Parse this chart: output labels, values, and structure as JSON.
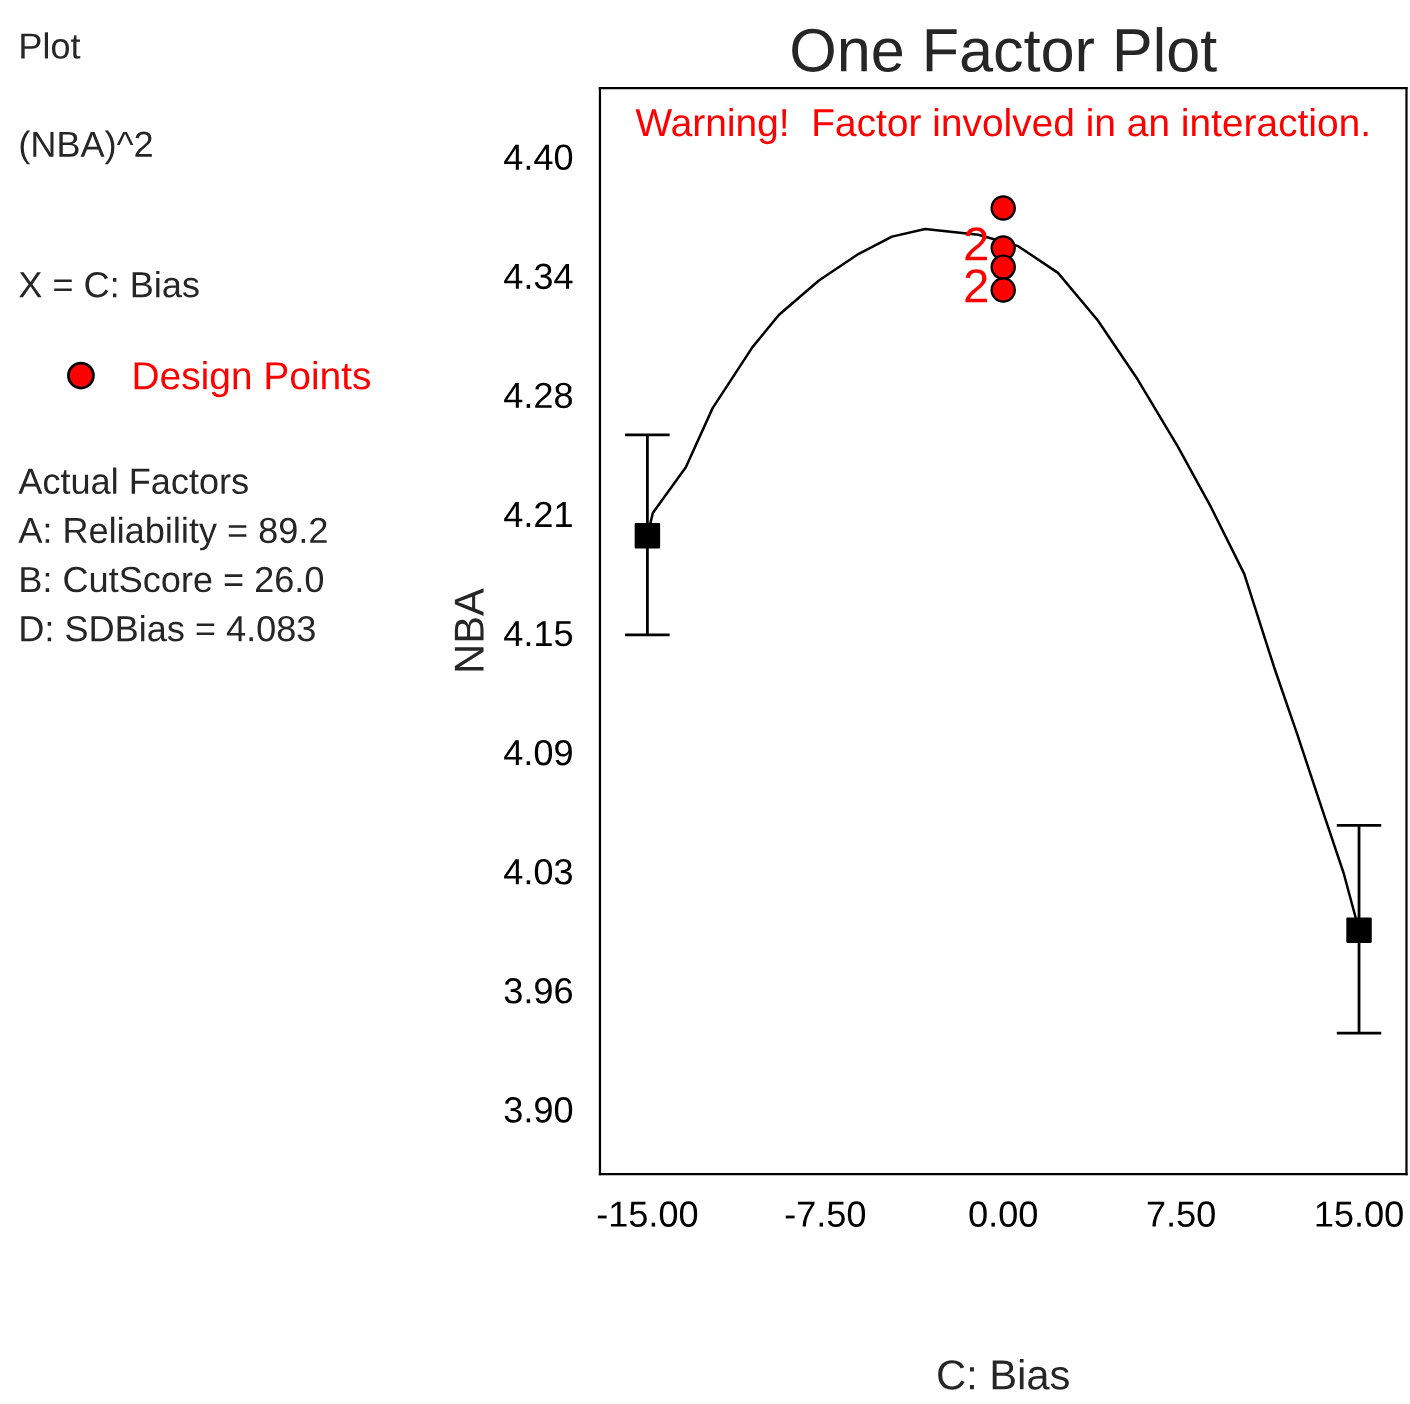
{
  "chart_data": {
    "type": "line",
    "title": "One Factor Plot",
    "xlabel": "C: Bias",
    "ylabel": "NBA",
    "x": [
      -15,
      -14.77,
      -13.38,
      -12.25,
      -10.57,
      -9.45,
      -7.77,
      -6.09,
      -4.69,
      -3.29,
      -1.05,
      0.63,
      2.31,
      3.99,
      5.67,
      7.35,
      8.76,
      10.16,
      11.42,
      12.39,
      13.51,
      14.35,
      15
    ],
    "series": [
      {
        "color": "#000000",
        "marker": "none",
        "line_style": "solid",
        "values": [
          4.201,
          4.213,
          4.237,
          4.268,
          4.3,
          4.317,
          4.335,
          4.349,
          4.358,
          4.362,
          4.359,
          4.353,
          4.339,
          4.314,
          4.283,
          4.248,
          4.216,
          4.181,
          4.132,
          4.097,
          4.055,
          4.024,
          3.994
        ]
      },
      {
        "type": "scatter",
        "color": "#000000",
        "marker": "square",
        "x": [
          -15,
          15
        ],
        "values": [
          4.201,
          3.994
        ],
        "errors": [
          [
            4.149,
            4.254
          ],
          [
            3.94,
            4.049
          ]
        ]
      },
      {
        "type": "scatter",
        "name": "Design Points",
        "color": "#ff0000",
        "marker": "circle",
        "x": [
          0,
          0,
          0,
          0
        ],
        "values": [
          4.373,
          4.352,
          4.342,
          4.33
        ]
      }
    ],
    "xlim": [
      -17,
      17
    ],
    "ylim": [
      3.866,
      4.436
    ],
    "xticks": [
      {
        "value": -15,
        "label": "-15.00"
      },
      {
        "value": -7.5,
        "label": "-7.50"
      },
      {
        "value": 0,
        "label": "0.00"
      },
      {
        "value": 7.5,
        "label": "7.50"
      },
      {
        "value": 15,
        "label": "15.00"
      }
    ],
    "yticks": [
      {
        "value": 3.9,
        "label": "3.90"
      },
      {
        "value": 3.9625,
        "label": "3.96"
      },
      {
        "value": 4.025,
        "label": "4.03"
      },
      {
        "value": 4.0875,
        "label": "4.09"
      },
      {
        "value": 4.15,
        "label": "4.15"
      },
      {
        "value": 4.2125,
        "label": "4.21"
      },
      {
        "value": 4.275,
        "label": "4.28"
      },
      {
        "value": 4.3375,
        "label": "4.34"
      },
      {
        "value": 4.4,
        "label": "4.40"
      }
    ],
    "grid": false,
    "legend": "left",
    "annotations": [
      "Plot",
      "(NBA)^2",
      "X = C: Bias",
      "Actual Factors",
      "A: Reliability = 89.2",
      "B: CutScore = 26.0",
      "D: SDBias = 4.083",
      "Warning!  Factor involved in an interaction.",
      {
        "text": "2",
        "x": 0,
        "y": 4.352
      },
      {
        "text": "2",
        "x": 0,
        "y": 4.33
      }
    ]
  }
}
